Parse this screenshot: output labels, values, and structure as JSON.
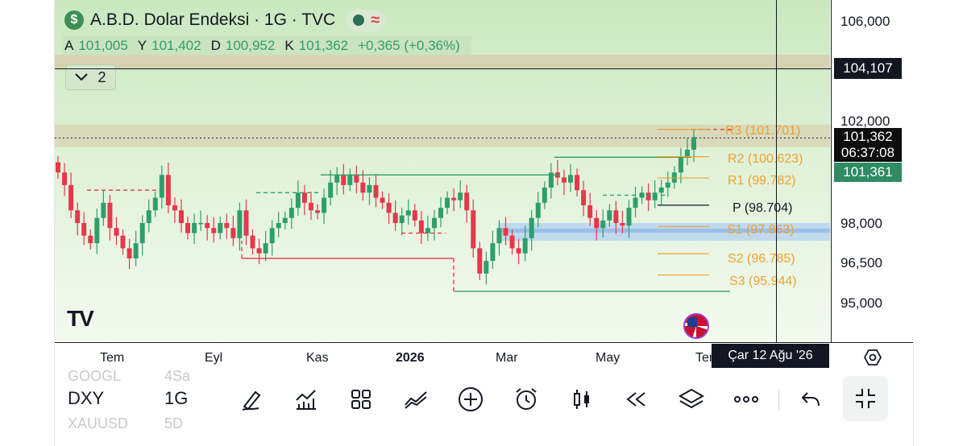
{
  "header": {
    "title": "A.B.D. Dolar Endeksi · 1G · TVC",
    "status_icon": "market-status-dot",
    "wave_icon": "≈"
  },
  "ohlc": {
    "open_label": "A",
    "open": "101,005",
    "high_label": "Y",
    "high": "101,402",
    "low_label": "D",
    "low": "100,952",
    "close_label": "K",
    "close": "101,362",
    "change": "+0,365 (+0,36%)"
  },
  "indicator_toggle": {
    "count": "2"
  },
  "pivots": {
    "r3": "R3 (101.701)",
    "r2": "R2 (100.623)",
    "r1": "R1 (99.782)",
    "p": "P (98.704)",
    "s1": "S1 (97.863)",
    "s2": "S2 (96.785)",
    "s3": "S3 (95.944)"
  },
  "price_scale": {
    "ticks": [
      "106,000",
      "102,000",
      "98,000",
      "96,500",
      "95,000"
    ],
    "crosshair_price": "104,107",
    "last_price": "101,362",
    "countdown": "06:37:08",
    "bid_price": "101,361"
  },
  "time_axis": {
    "labels": [
      "Tem",
      "Eyl",
      "Kas",
      "2026",
      "Mar",
      "May",
      "Tem"
    ],
    "crosshair_date": "Çar 12 Ağu '26"
  },
  "bottom_bar": {
    "symbol": "DXY",
    "interval": "1G",
    "ghost_symbol_above": "GOOGL",
    "ghost_interval_above": "4Sa",
    "ghost_symbol_below": "XAUUSD",
    "ghost_interval_below": "5D"
  },
  "colors": {
    "up": "#2e9e6b",
    "down": "#e2394b",
    "pivot": "#f0a030",
    "chart_bg": "#cfe9c6"
  },
  "chart_data": {
    "type": "candlestick",
    "title": "A.B.D. Dolar Endeksi · 1G · TVC",
    "ylim": [
      94.0,
      107.0
    ],
    "x_ticks": [
      "Tem",
      "Eyl",
      "Kas",
      "2026",
      "Mar",
      "May",
      "Tem"
    ],
    "close_approx": [
      100.0,
      99.5,
      98.5,
      98.0,
      97.5,
      97.2,
      98.2,
      98.8,
      97.8,
      97.5,
      97.0,
      96.6,
      97.2,
      98.0,
      98.5,
      99.0,
      99.9,
      98.7,
      98.5,
      98.0,
      97.6,
      98.0,
      98.0,
      97.8,
      97.6,
      98.0,
      97.8,
      97.4,
      98.5,
      97.5,
      97.0,
      96.8,
      97.2,
      97.8,
      98.0,
      98.2,
      98.6,
      99.2,
      98.8,
      98.5,
      98.4,
      99.0,
      99.6,
      99.9,
      99.5,
      99.9,
      99.6,
      99.2,
      99.5,
      99.0,
      98.8,
      98.4,
      98.0,
      98.3,
      98.5,
      98.1,
      97.6,
      97.8,
      98.2,
      98.6,
      99.0,
      98.9,
      99.2,
      98.5,
      97.0,
      96.0,
      96.5,
      97.2,
      97.8,
      97.5,
      97.0,
      96.8,
      97.4,
      98.2,
      98.8,
      99.4,
      100.0,
      99.8,
      99.6,
      99.9,
      99.3,
      98.7,
      98.2,
      97.8,
      98.1,
      98.5,
      98.0,
      97.9,
      98.6,
      99.0,
      99.2,
      98.9,
      99.2,
      99.4,
      99.6,
      100.0,
      100.6,
      100.9,
      101.4
    ],
    "horizontal_levels": [
      {
        "price": 101.7,
        "label": "R3 (101.701)"
      },
      {
        "price": 100.623,
        "label": "R2 (100.623)"
      },
      {
        "price": 99.782,
        "label": "R1 (99.782)"
      },
      {
        "price": 98.704,
        "label": "P (98.704)"
      },
      {
        "price": 97.863,
        "label": "S1 (97.863)"
      },
      {
        "price": 96.785,
        "label": "S2 (96.785)"
      },
      {
        "price": 95.944,
        "label": "S3 (95.944)"
      }
    ],
    "last_price": 101.362
  }
}
